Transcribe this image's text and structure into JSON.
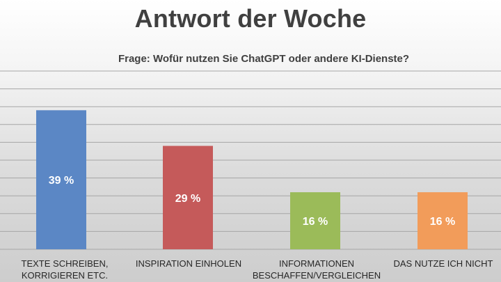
{
  "title": "Antwort der Woche",
  "subtitle": "Frage: Wofür nutzen Sie ChatGPT oder andere KI-Dienste?",
  "colors": {
    "bar_blue": "#5b87c5",
    "bar_red": "#c55a5a",
    "bar_green": "#9bbb59",
    "bar_orange": "#f29c5a",
    "grid": "#a6a6a6",
    "label": "#ffffff"
  },
  "chart_data": {
    "type": "bar",
    "categories": [
      "TEXTE SCHREIBEN, KORRIGIEREN ETC.",
      "INSPIRATION EINHOLEN",
      "INFORMATIONEN BESCHAFFEN/VERGLEICHEN",
      "DAS NUTZE ICH NICHT"
    ],
    "values": [
      39,
      29,
      16,
      16
    ],
    "data_labels": [
      "39 %",
      "29 %",
      "16 %",
      "16 %"
    ],
    "unit": "%",
    "ylim": [
      0,
      50
    ],
    "grid": true,
    "legend": false
  }
}
